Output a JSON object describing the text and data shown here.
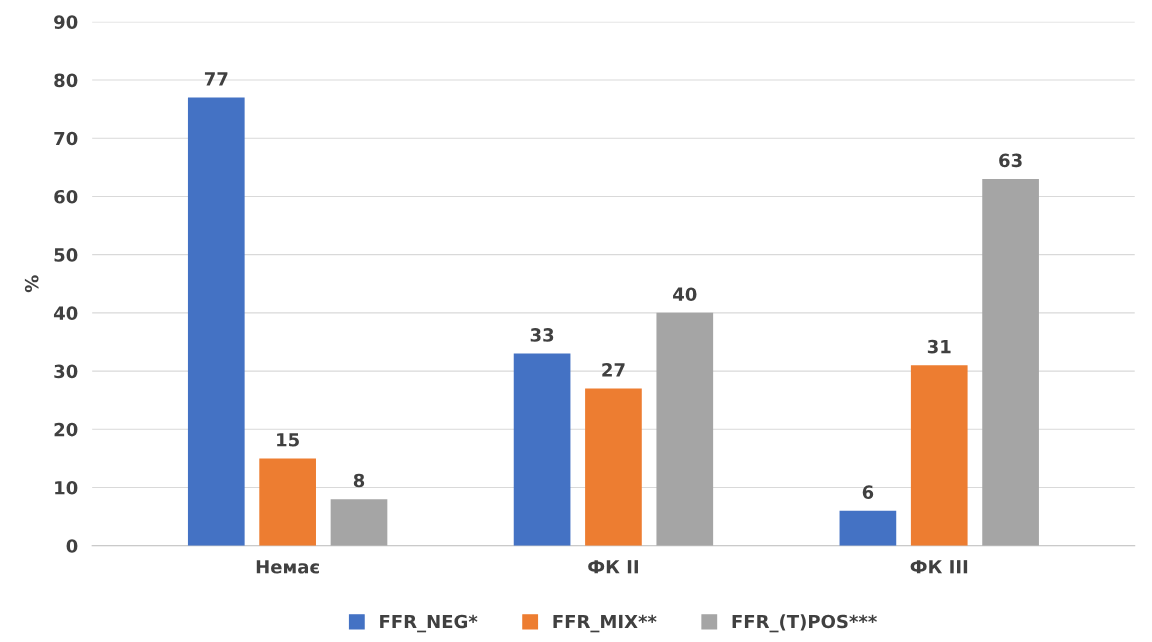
{
  "chart_data": {
    "type": "bar",
    "ylabel": "%",
    "categories": [
      "Немає",
      "ФК II",
      "ФК III"
    ],
    "series": [
      {
        "name": "FFR_NEG*",
        "color": "#4472c4",
        "values": [
          77,
          33,
          6
        ]
      },
      {
        "name": "FFR_MIX**",
        "color": "#ed7d31",
        "values": [
          15,
          27,
          31
        ]
      },
      {
        "name": "FFR_(T)POS***",
        "color": "#a5a5a5",
        "values": [
          8,
          40,
          63
        ]
      }
    ],
    "ylim": [
      0,
      90
    ],
    "yticks": [
      0,
      10,
      20,
      30,
      40,
      50,
      60,
      70,
      80,
      90
    ],
    "grid": "y",
    "legend": "bottom",
    "data_labels": true
  }
}
